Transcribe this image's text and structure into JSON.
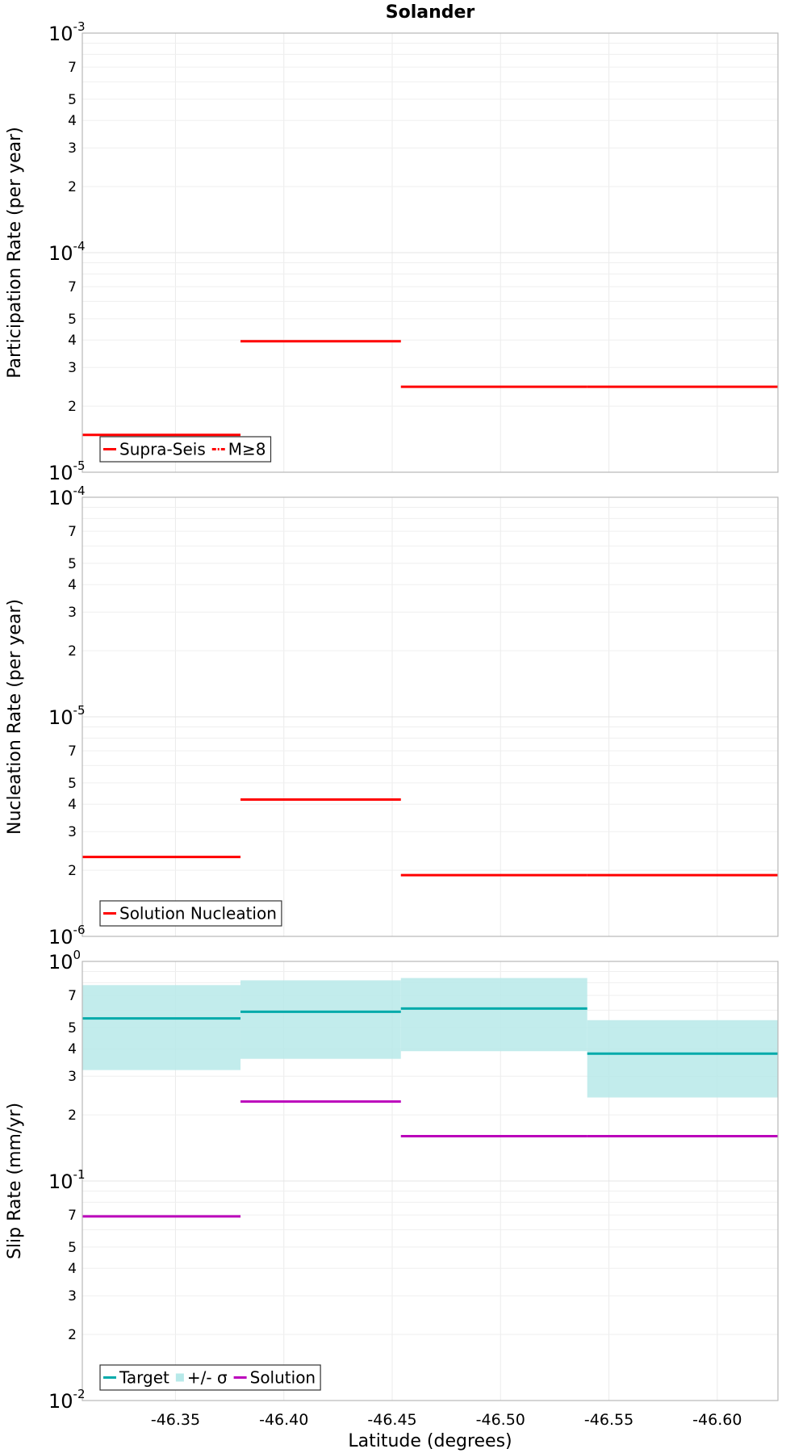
{
  "chart_data": {
    "title": "Solander",
    "xlabel": "Latitude (degrees)",
    "x_ticks": [
      -46.35,
      -46.4,
      -46.45,
      -46.5,
      -46.55,
      -46.6
    ],
    "x_tick_labels": [
      "-46.35",
      "-46.40",
      "-46.45",
      "-46.50",
      "-46.55",
      "-46.60"
    ],
    "xlim": [
      -46.307,
      -46.628
    ],
    "type": "line",
    "panels": [
      {
        "ylabel": "Participation Rate (per year)",
        "yscale": "log",
        "ylim": [
          1e-05,
          0.001
        ],
        "decade_labels": [
          {
            "base": "10",
            "exp": "-5"
          },
          {
            "base": "10",
            "exp": "-4"
          },
          {
            "base": "10",
            "exp": "-3"
          }
        ],
        "minor_labels": [
          "2",
          "3",
          "4",
          "5",
          "7"
        ],
        "legend": {
          "position": "bottom-left",
          "entries": [
            {
              "label": "Supra-Seis",
              "color": "#ff0000",
              "style": "solid"
            },
            {
              "label": "M≥8",
              "color": "#ff0000",
              "style": "dash-dot"
            }
          ]
        },
        "series": [
          {
            "name": "Supra-Seis",
            "color": "#ff0000",
            "kind": "step",
            "segments": [
              {
                "x0": -46.307,
                "x1": -46.38,
                "y": 1.48e-05
              },
              {
                "x0": -46.38,
                "x1": -46.454,
                "y": 3.95e-05
              },
              {
                "x0": -46.454,
                "x1": -46.54,
                "y": 2.45e-05
              },
              {
                "x0": -46.54,
                "x1": -46.628,
                "y": 2.45e-05
              }
            ]
          }
        ]
      },
      {
        "ylabel": "Nucleation Rate (per year)",
        "yscale": "log",
        "ylim": [
          1e-06,
          0.0001
        ],
        "decade_labels": [
          {
            "base": "10",
            "exp": "-6"
          },
          {
            "base": "10",
            "exp": "-5"
          },
          {
            "base": "10",
            "exp": "-4"
          }
        ],
        "minor_labels": [
          "2",
          "3",
          "4",
          "5",
          "7"
        ],
        "legend": {
          "position": "bottom-left",
          "entries": [
            {
              "label": "Solution Nucleation",
              "color": "#ff0000",
              "style": "solid"
            }
          ]
        },
        "series": [
          {
            "name": "Solution Nucleation",
            "color": "#ff0000",
            "kind": "step",
            "segments": [
              {
                "x0": -46.307,
                "x1": -46.38,
                "y": 2.3e-06
              },
              {
                "x0": -46.38,
                "x1": -46.454,
                "y": 4.2e-06
              },
              {
                "x0": -46.454,
                "x1": -46.54,
                "y": 1.9e-06
              },
              {
                "x0": -46.54,
                "x1": -46.628,
                "y": 1.9e-06
              }
            ]
          }
        ]
      },
      {
        "ylabel": "Slip Rate (mm/yr)",
        "yscale": "log",
        "ylim": [
          0.01,
          1
        ],
        "decade_labels": [
          {
            "base": "10",
            "exp": "-2"
          },
          {
            "base": "10",
            "exp": "-1"
          },
          {
            "base": "10",
            "exp": "0"
          }
        ],
        "minor_labels": [
          "2",
          "3",
          "4",
          "5",
          "7"
        ],
        "legend": {
          "position": "bottom-left",
          "entries": [
            {
              "label": "Target",
              "color": "#00aaaa",
              "style": "solid"
            },
            {
              "label": "+/- σ",
              "color": "#b7e9e9",
              "style": "band"
            },
            {
              "label": "Solution",
              "color": "#bb00bb",
              "style": "solid"
            }
          ]
        },
        "bands": [
          {
            "name": "+/- σ",
            "color": "#b7e9e9",
            "segments": [
              {
                "x0": -46.307,
                "x1": -46.38,
                "y_low": 0.32,
                "y_high": 0.78
              },
              {
                "x0": -46.38,
                "x1": -46.454,
                "y_low": 0.36,
                "y_high": 0.82
              },
              {
                "x0": -46.454,
                "x1": -46.54,
                "y_low": 0.39,
                "y_high": 0.84
              },
              {
                "x0": -46.54,
                "x1": -46.628,
                "y_low": 0.24,
                "y_high": 0.54
              }
            ]
          }
        ],
        "series": [
          {
            "name": "Target",
            "color": "#00aaaa",
            "kind": "step",
            "segments": [
              {
                "x0": -46.307,
                "x1": -46.38,
                "y": 0.55
              },
              {
                "x0": -46.38,
                "x1": -46.454,
                "y": 0.59
              },
              {
                "x0": -46.454,
                "x1": -46.54,
                "y": 0.61
              },
              {
                "x0": -46.54,
                "x1": -46.628,
                "y": 0.38
              }
            ]
          },
          {
            "name": "Solution",
            "color": "#bb00bb",
            "kind": "step",
            "segments": [
              {
                "x0": -46.307,
                "x1": -46.38,
                "y": 0.069
              },
              {
                "x0": -46.38,
                "x1": -46.454,
                "y": 0.23
              },
              {
                "x0": -46.454,
                "x1": -46.54,
                "y": 0.16
              },
              {
                "x0": -46.54,
                "x1": -46.628,
                "y": 0.16
              }
            ]
          }
        ]
      }
    ]
  }
}
